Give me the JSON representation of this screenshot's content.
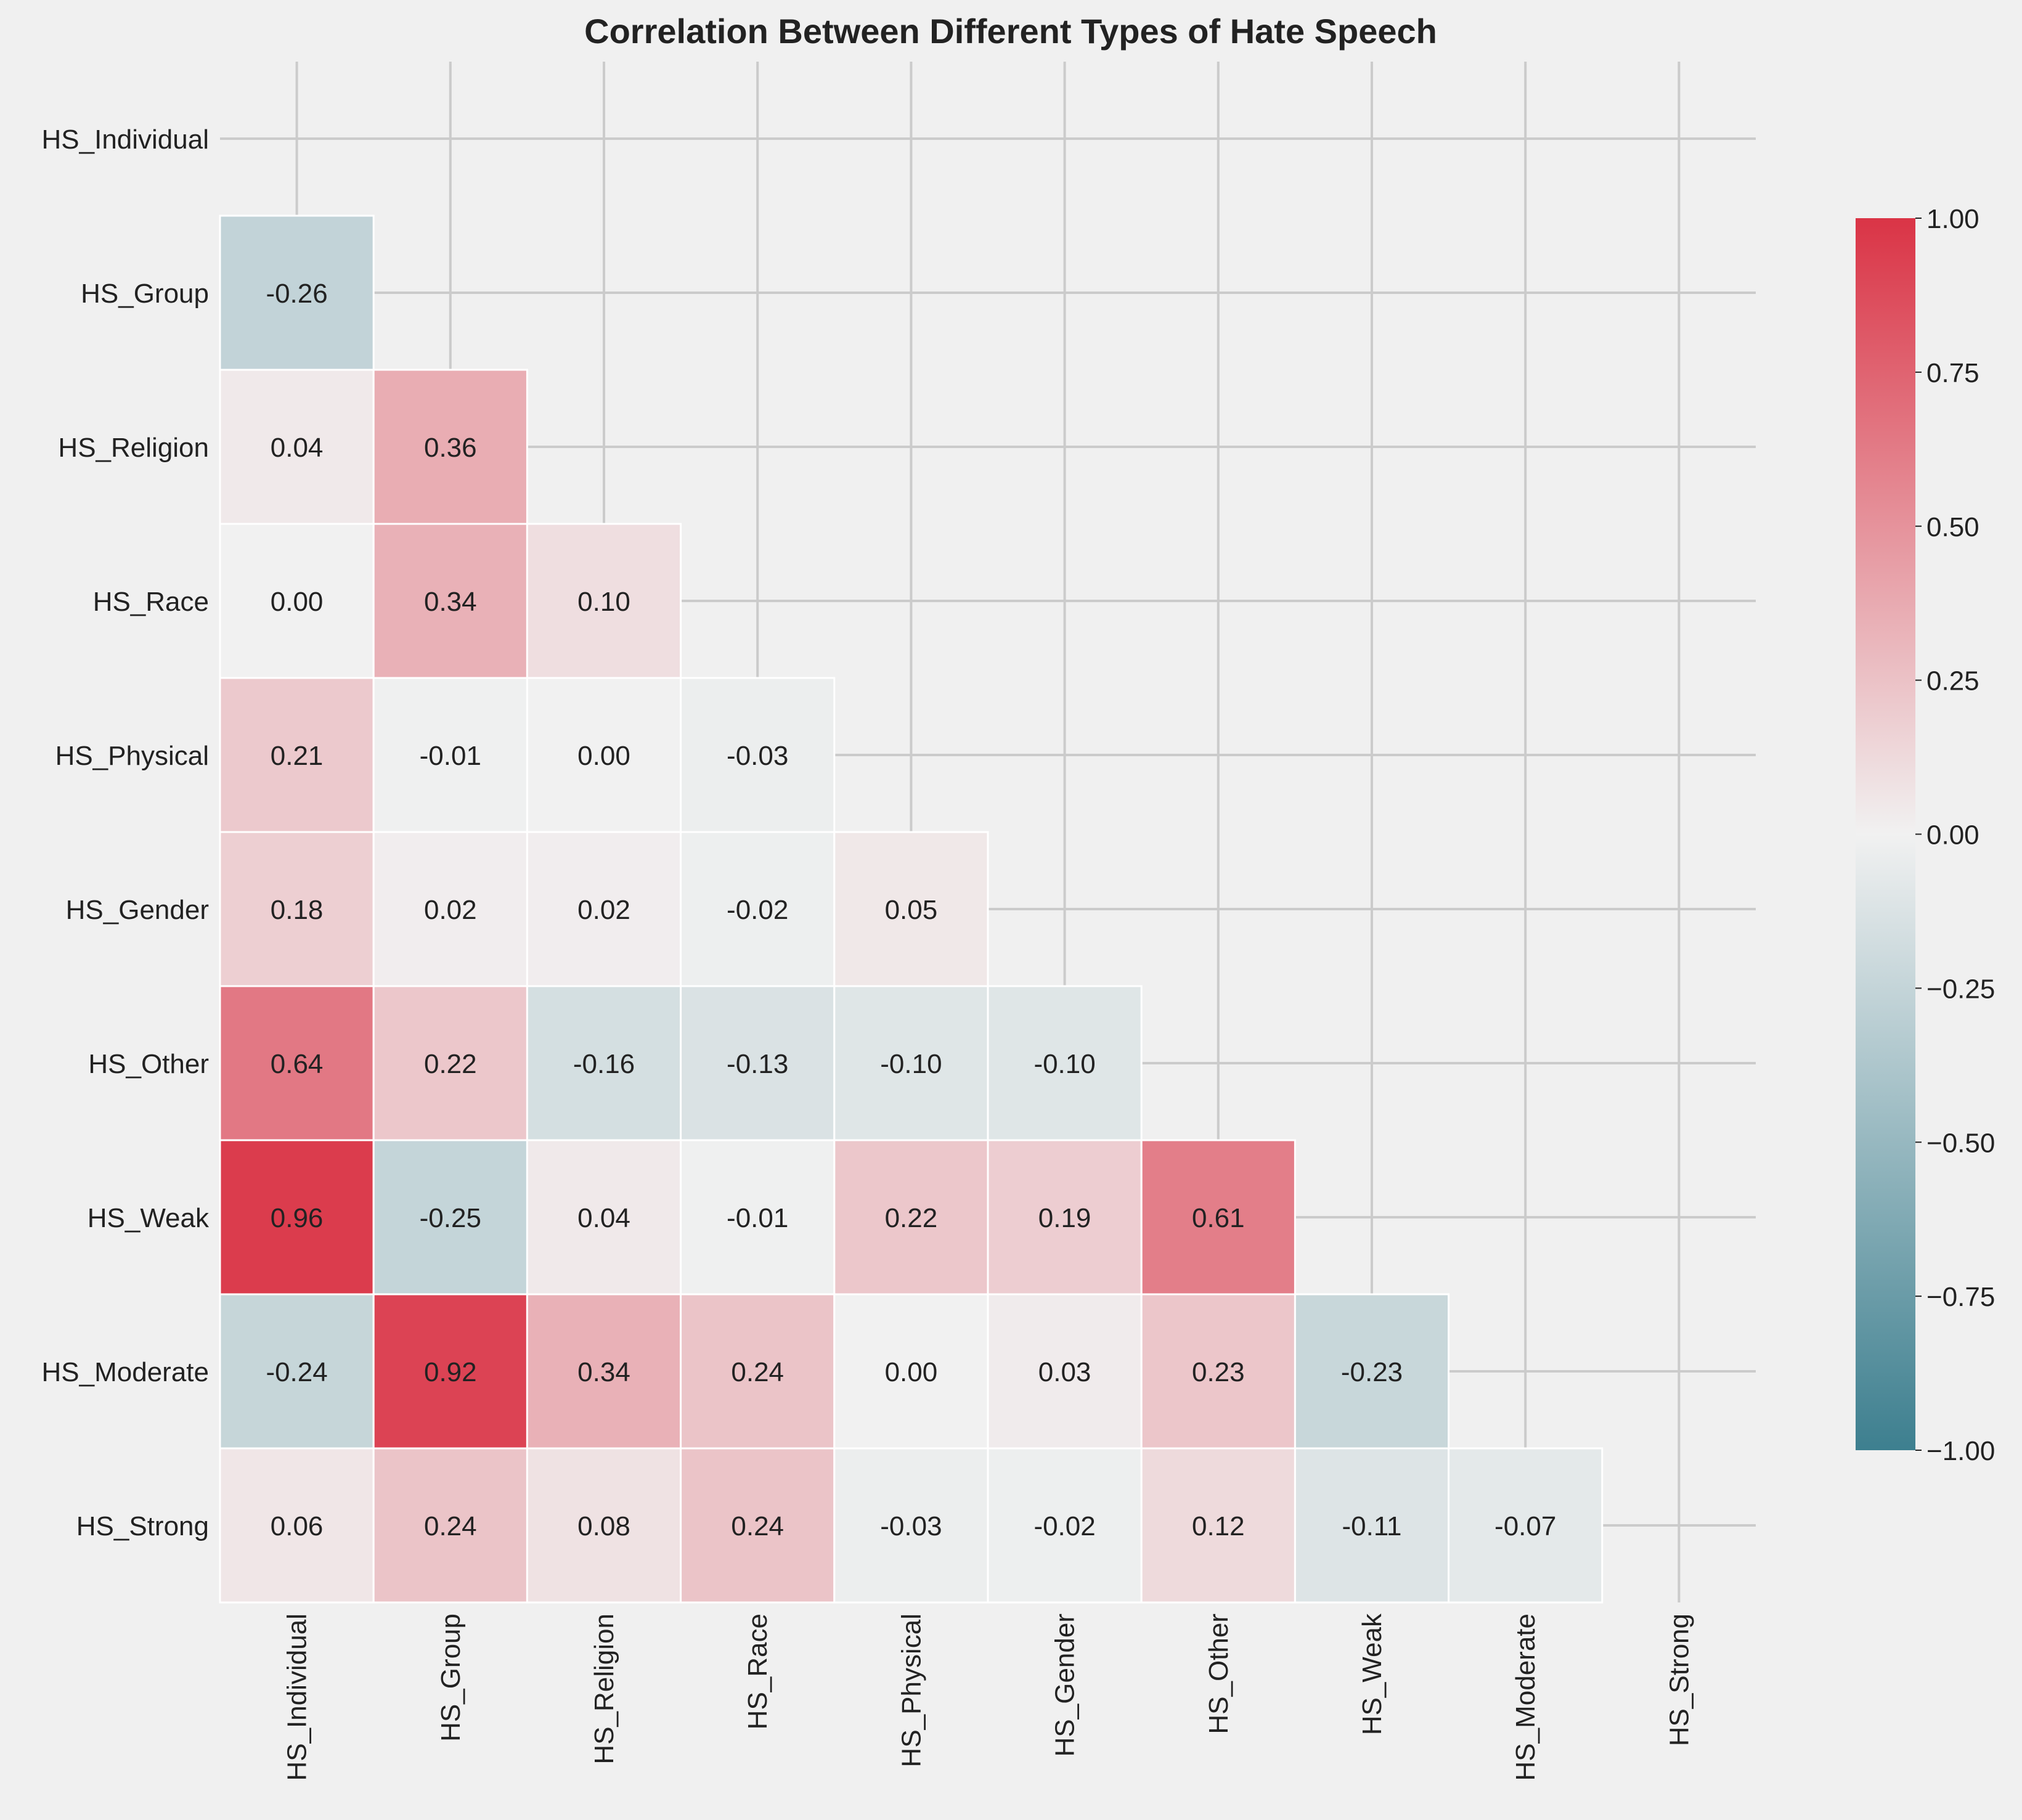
{
  "chart_data": {
    "type": "heatmap",
    "title": "Correlation Between Different Types of Hate Speech",
    "xlabel": "",
    "ylabel": "",
    "labels": [
      "HS_Individual",
      "HS_Group",
      "HS_Religion",
      "HS_Race",
      "HS_Physical",
      "HS_Gender",
      "HS_Other",
      "HS_Weak",
      "HS_Moderate",
      "HS_Strong"
    ],
    "matrix": [
      [
        null,
        null,
        null,
        null,
        null,
        null,
        null,
        null,
        null,
        null
      ],
      [
        -0.26,
        null,
        null,
        null,
        null,
        null,
        null,
        null,
        null,
        null
      ],
      [
        0.04,
        0.36,
        null,
        null,
        null,
        null,
        null,
        null,
        null,
        null
      ],
      [
        -0.0,
        0.34,
        0.1,
        null,
        null,
        null,
        null,
        null,
        null,
        null
      ],
      [
        0.21,
        -0.01,
        -0.0,
        -0.03,
        null,
        null,
        null,
        null,
        null,
        null
      ],
      [
        0.18,
        0.02,
        0.02,
        -0.02,
        0.05,
        null,
        null,
        null,
        null,
        null
      ],
      [
        0.64,
        0.22,
        -0.16,
        -0.13,
        -0.1,
        -0.1,
        null,
        null,
        null,
        null
      ],
      [
        0.96,
        -0.25,
        0.04,
        -0.01,
        0.22,
        0.19,
        0.61,
        null,
        null,
        null
      ],
      [
        -0.24,
        0.92,
        0.34,
        0.24,
        0.0,
        0.03,
        0.23,
        -0.23,
        null,
        null
      ],
      [
        0.06,
        0.24,
        0.08,
        0.24,
        -0.03,
        -0.02,
        0.12,
        -0.11,
        -0.07,
        null
      ]
    ],
    "annotation_decimals": 2,
    "colorbar": {
      "vmin": -1.0,
      "vmax": 1.0,
      "ticks": [
        1.0,
        0.75,
        0.5,
        0.25,
        0.0,
        -0.25,
        -0.5,
        -0.75,
        -1.0
      ],
      "tick_labels": [
        "1.00",
        "0.75",
        "0.50",
        "0.25",
        "0.00",
        "−0.25",
        "−0.50",
        "−0.75",
        "−1.00"
      ],
      "colors": {
        "low": "#3d7f8f",
        "mid": "#f1f1f1",
        "high": "#da3446"
      }
    },
    "mask": "upper-triangle-including-diagonal",
    "grid": true,
    "legend": "colorbar-right"
  }
}
